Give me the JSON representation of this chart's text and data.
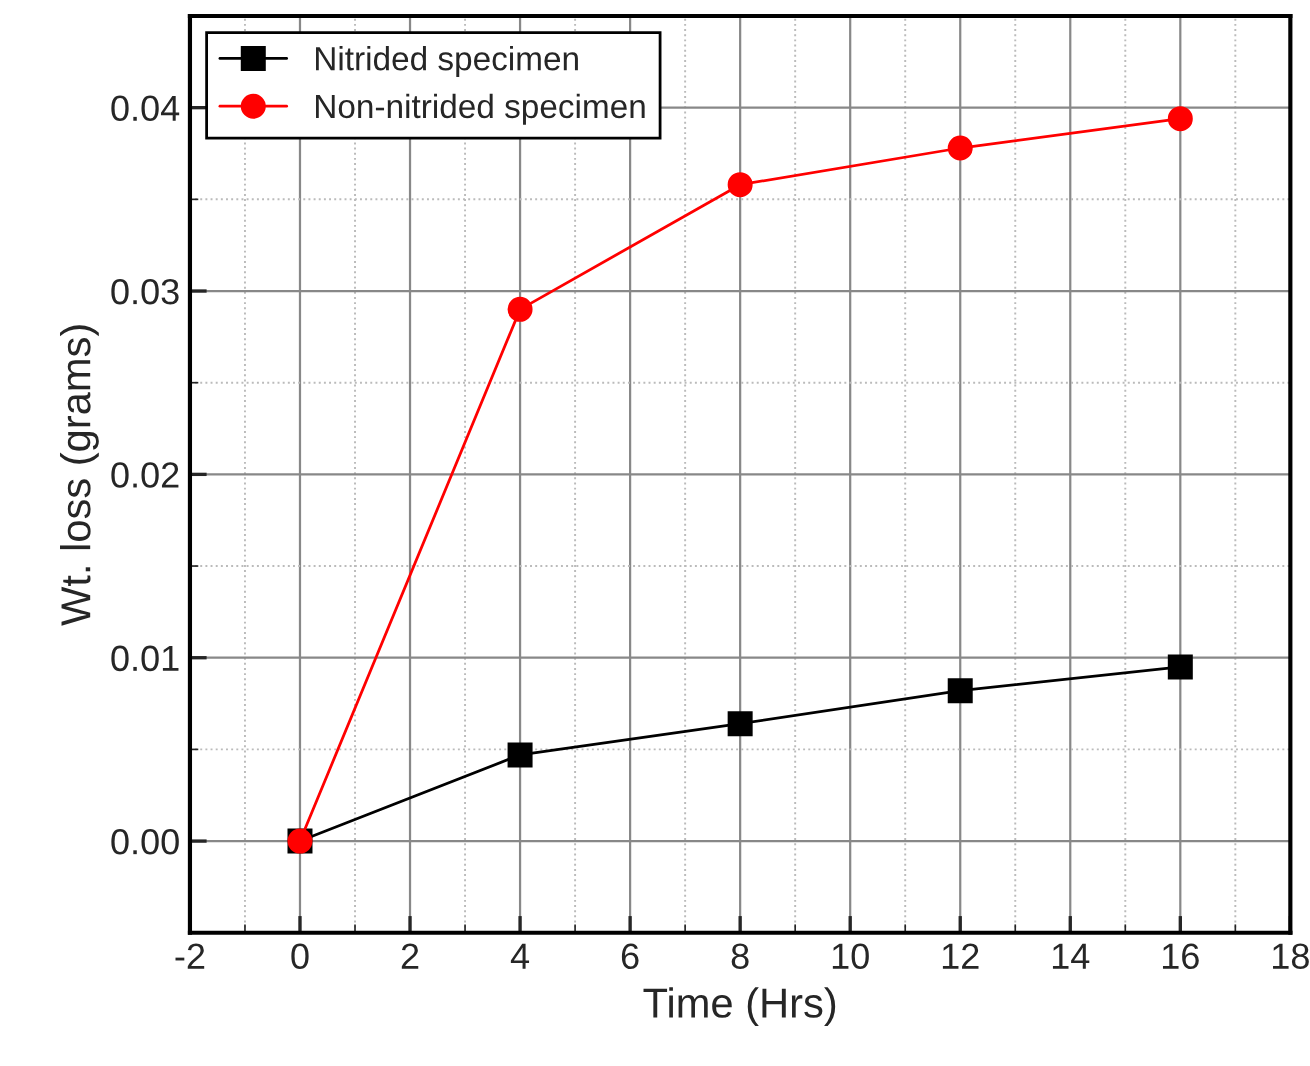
{
  "chart_data": {
    "type": "line",
    "xlabel": "Time (Hrs)",
    "ylabel": "Wt. loss (grams)",
    "x": [
      0,
      4,
      8,
      12,
      16
    ],
    "series": [
      {
        "name": "Nitrided specimen",
        "color": "#000000",
        "marker": "square",
        "values": [
          0,
          0.0047,
          0.0064,
          0.0082,
          0.0095
        ]
      },
      {
        "name": "Non-nitrided specimen",
        "color": "#ff0000",
        "marker": "circle",
        "values": [
          0,
          0.029,
          0.0358,
          0.0378,
          0.0394
        ]
      }
    ],
    "xlim": [
      -2,
      18
    ],
    "xticks": [
      -2,
      0,
      2,
      4,
      6,
      8,
      10,
      12,
      14,
      16,
      18
    ],
    "ylim": [
      -0.005,
      0.045
    ],
    "yticks": [
      {
        "value": 0,
        "label": "0.00"
      },
      0.01,
      0.02,
      0.03,
      0.04
    ],
    "grid": true,
    "legend": "top left",
    "line_style": "solid"
  }
}
